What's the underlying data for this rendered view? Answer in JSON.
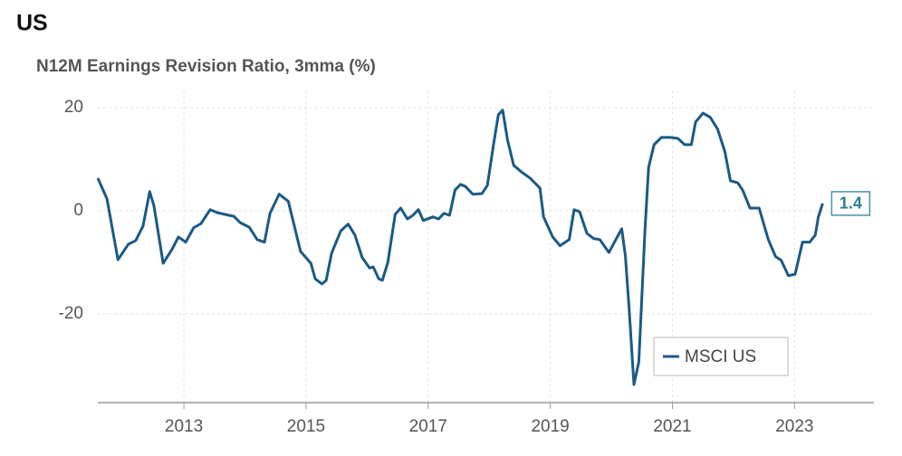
{
  "chart_data": {
    "type": "line",
    "title": "US",
    "subtitle": "N12M Earnings Revision Ratio, 3mma (%)",
    "x": [
      2011.59,
      2011.74,
      2011.92,
      2012.09,
      2012.21,
      2012.33,
      2012.44,
      2012.51,
      2012.66,
      2012.81,
      2012.91,
      2013.03,
      2013.16,
      2013.28,
      2013.43,
      2013.55,
      2013.82,
      2013.92,
      2014.07,
      2014.2,
      2014.32,
      2014.41,
      2014.56,
      2014.71,
      2014.91,
      2015.08,
      2015.15,
      2015.26,
      2015.33,
      2015.42,
      2015.57,
      2015.69,
      2015.8,
      2015.92,
      2016.04,
      2016.1,
      2016.19,
      2016.25,
      2016.34,
      2016.46,
      2016.55,
      2016.66,
      2016.75,
      2016.84,
      2016.92,
      2017.08,
      2017.17,
      2017.26,
      2017.35,
      2017.44,
      2017.53,
      2017.61,
      2017.73,
      2017.88,
      2017.97,
      2018.07,
      2018.15,
      2018.22,
      2018.3,
      2018.4,
      2018.53,
      2018.67,
      2018.83,
      2018.89,
      2019.04,
      2019.16,
      2019.31,
      2019.39,
      2019.48,
      2019.6,
      2019.71,
      2019.81,
      2019.96,
      2020.05,
      2020.17,
      2020.23,
      2020.29,
      2020.37,
      2020.45,
      2020.55,
      2020.61,
      2020.7,
      2020.82,
      2020.97,
      2021.09,
      2021.2,
      2021.31,
      2021.38,
      2021.5,
      2021.62,
      2021.74,
      2021.86,
      2021.95,
      2022.07,
      2022.15,
      2022.27,
      2022.42,
      2022.57,
      2022.69,
      2022.78,
      2022.9,
      2023.01,
      2023.13,
      2023.25,
      2023.34,
      2023.39,
      2023.46
    ],
    "series": [
      {
        "name": "MSCI US",
        "color": "#1b5a84",
        "values": [
          6.3,
          2.3,
          -9.5,
          -6.5,
          -5.8,
          -3.0,
          3.7,
          0.9,
          -10.2,
          -7.4,
          -5.1,
          -6.1,
          -3.3,
          -2.5,
          0.2,
          -0.4,
          -1.1,
          -2.3,
          -3.2,
          -5.6,
          -6.1,
          -0.5,
          3.2,
          1.8,
          -7.9,
          -10.2,
          -13.2,
          -14.2,
          -13.5,
          -8.2,
          -3.9,
          -2.6,
          -4.7,
          -9.1,
          -11.1,
          -10.9,
          -13.2,
          -13.5,
          -10.0,
          -0.7,
          0.5,
          -1.6,
          -0.9,
          0.2,
          -1.9,
          -1.2,
          -1.6,
          -0.5,
          -0.9,
          4.0,
          5.1,
          4.7,
          3.2,
          3.3,
          4.9,
          12.8,
          18.6,
          19.5,
          13.7,
          8.8,
          7.5,
          6.3,
          4.4,
          -1.2,
          -5.1,
          -6.8,
          -5.6,
          0.2,
          -0.2,
          -4.4,
          -5.4,
          -5.6,
          -8.1,
          -6.1,
          -3.5,
          -8.8,
          -18.8,
          -33.7,
          -29.3,
          -3.9,
          8.4,
          12.8,
          14.2,
          14.2,
          14.0,
          12.8,
          12.8,
          17.2,
          18.9,
          18.1,
          15.8,
          11.4,
          5.8,
          5.4,
          4.0,
          0.5,
          0.5,
          -5.6,
          -8.9,
          -9.6,
          -12.6,
          -12.3,
          -6.1,
          -6.1,
          -4.7,
          -1.2,
          1.4
        ]
      }
    ],
    "xlim": [
      2011.59,
      2024.3
    ],
    "xticks": [
      2013,
      2015,
      2017,
      2019,
      2021,
      2023
    ],
    "ylim": [
      -37.2,
      23.3
    ],
    "yticks": [
      -20,
      0,
      20
    ],
    "grid": true,
    "legend": "bottom-right"
  }
}
